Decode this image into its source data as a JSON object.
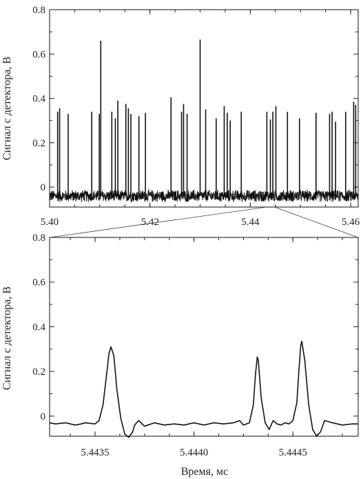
{
  "chart_data": [
    {
      "type": "line",
      "panel": "top",
      "ylabel": "Сигнал с детектора, В",
      "xlabel": "",
      "xlim": [
        5.4,
        5.4615
      ],
      "ylim": [
        -0.09,
        0.8
      ],
      "xticks": [
        5.4,
        5.42,
        5.44,
        5.46
      ],
      "xtick_labels": [
        "5.40",
        "5.42",
        "5.44",
        "5.46"
      ],
      "yticks": [
        0,
        0.2,
        0.4,
        0.6,
        0.8
      ],
      "ytick_labels": [
        "0",
        "0.2",
        "0.4",
        "0.6",
        "0.8"
      ],
      "baseline": -0.04,
      "noise_amplitude": 0.03,
      "spikes": [
        {
          "x": 5.4016,
          "y": 0.34
        },
        {
          "x": 5.402,
          "y": 0.355
        },
        {
          "x": 5.4037,
          "y": 0.33
        },
        {
          "x": 5.4084,
          "y": 0.34
        },
        {
          "x": 5.4099,
          "y": 0.33
        },
        {
          "x": 5.4102,
          "y": 0.66
        },
        {
          "x": 5.4124,
          "y": 0.34
        },
        {
          "x": 5.4131,
          "y": 0.31
        },
        {
          "x": 5.4136,
          "y": 0.39
        },
        {
          "x": 5.4152,
          "y": 0.375
        },
        {
          "x": 5.4157,
          "y": 0.355
        },
        {
          "x": 5.4162,
          "y": 0.33
        },
        {
          "x": 5.4178,
          "y": 0.32
        },
        {
          "x": 5.4191,
          "y": 0.335
        },
        {
          "x": 5.4242,
          "y": 0.405
        },
        {
          "x": 5.4263,
          "y": 0.34
        },
        {
          "x": 5.4267,
          "y": 0.375
        },
        {
          "x": 5.4274,
          "y": 0.33
        },
        {
          "x": 5.43,
          "y": 0.665
        },
        {
          "x": 5.4311,
          "y": 0.35
        },
        {
          "x": 5.4332,
          "y": 0.31
        },
        {
          "x": 5.4348,
          "y": 0.365
        },
        {
          "x": 5.4354,
          "y": 0.335
        },
        {
          "x": 5.436,
          "y": 0.3
        },
        {
          "x": 5.4382,
          "y": 0.34
        },
        {
          "x": 5.4433,
          "y": 0.34
        },
        {
          "x": 5.444,
          "y": 0.305
        },
        {
          "x": 5.4445,
          "y": 0.34
        },
        {
          "x": 5.4451,
          "y": 0.365
        },
        {
          "x": 5.4474,
          "y": 0.34
        },
        {
          "x": 5.4498,
          "y": 0.31
        },
        {
          "x": 5.4531,
          "y": 0.335
        },
        {
          "x": 5.4558,
          "y": 0.33
        },
        {
          "x": 5.4563,
          "y": 0.34
        },
        {
          "x": 5.457,
          "y": 0.295
        },
        {
          "x": 5.459,
          "y": 0.34
        },
        {
          "x": 5.4606,
          "y": 0.385
        },
        {
          "x": 5.461,
          "y": 0.37
        }
      ]
    },
    {
      "type": "line",
      "panel": "bottom",
      "ylabel": "Сигнал с детектора, В",
      "xlabel": "Время, мс",
      "xlim": [
        5.44327,
        5.44483
      ],
      "ylim": [
        -0.09,
        0.8
      ],
      "xticks": [
        5.4435,
        5.444,
        5.4445
      ],
      "xtick_labels": [
        "5.4435",
        "5.4440",
        "5.4445"
      ],
      "yticks": [
        0,
        0.2,
        0.4,
        0.6,
        0.8
      ],
      "ytick_labels": [
        "0",
        "0.2",
        "0.4",
        "0.6",
        "0.8"
      ],
      "x": [
        5.44327,
        5.4433,
        5.44335,
        5.4434,
        5.44343,
        5.44345,
        5.4435,
        5.44352,
        5.44354,
        5.44356,
        5.44357,
        5.44358,
        5.443595,
        5.44361,
        5.44363,
        5.44365,
        5.44367,
        5.44369,
        5.4437,
        5.44372,
        5.44375,
        5.4438,
        5.44385,
        5.4439,
        5.44395,
        5.444,
        5.44405,
        5.4441,
        5.44415,
        5.4442,
        5.44423,
        5.44425,
        5.44428,
        5.4443,
        5.44431,
        5.44432,
        5.444325,
        5.44434,
        5.44436,
        5.44438,
        5.4444,
        5.44442,
        5.44444,
        5.44446,
        5.44448,
        5.4445,
        5.44452,
        5.44453,
        5.44454,
        5.444545,
        5.44456,
        5.44458,
        5.4446,
        5.44462,
        5.44464,
        5.44466,
        5.44468,
        5.4447,
        5.44475,
        5.4448,
        5.44483
      ],
      "y": [
        -0.03,
        -0.035,
        -0.03,
        -0.04,
        -0.035,
        -0.03,
        -0.035,
        -0.02,
        0.05,
        0.2,
        0.28,
        0.31,
        0.27,
        0.12,
        -0.01,
        -0.08,
        -0.095,
        -0.07,
        -0.04,
        -0.02,
        -0.045,
        -0.03,
        -0.04,
        -0.035,
        -0.04,
        -0.03,
        -0.04,
        -0.03,
        -0.035,
        -0.03,
        -0.02,
        -0.04,
        -0.03,
        0.05,
        0.18,
        0.265,
        0.25,
        0.08,
        -0.03,
        -0.06,
        -0.02,
        -0.035,
        -0.04,
        -0.03,
        -0.035,
        -0.02,
        0.06,
        0.2,
        0.32,
        0.335,
        0.25,
        0.05,
        -0.06,
        -0.09,
        -0.07,
        -0.02,
        -0.025,
        -0.03,
        -0.04,
        -0.035,
        -0.035
      ]
    }
  ]
}
